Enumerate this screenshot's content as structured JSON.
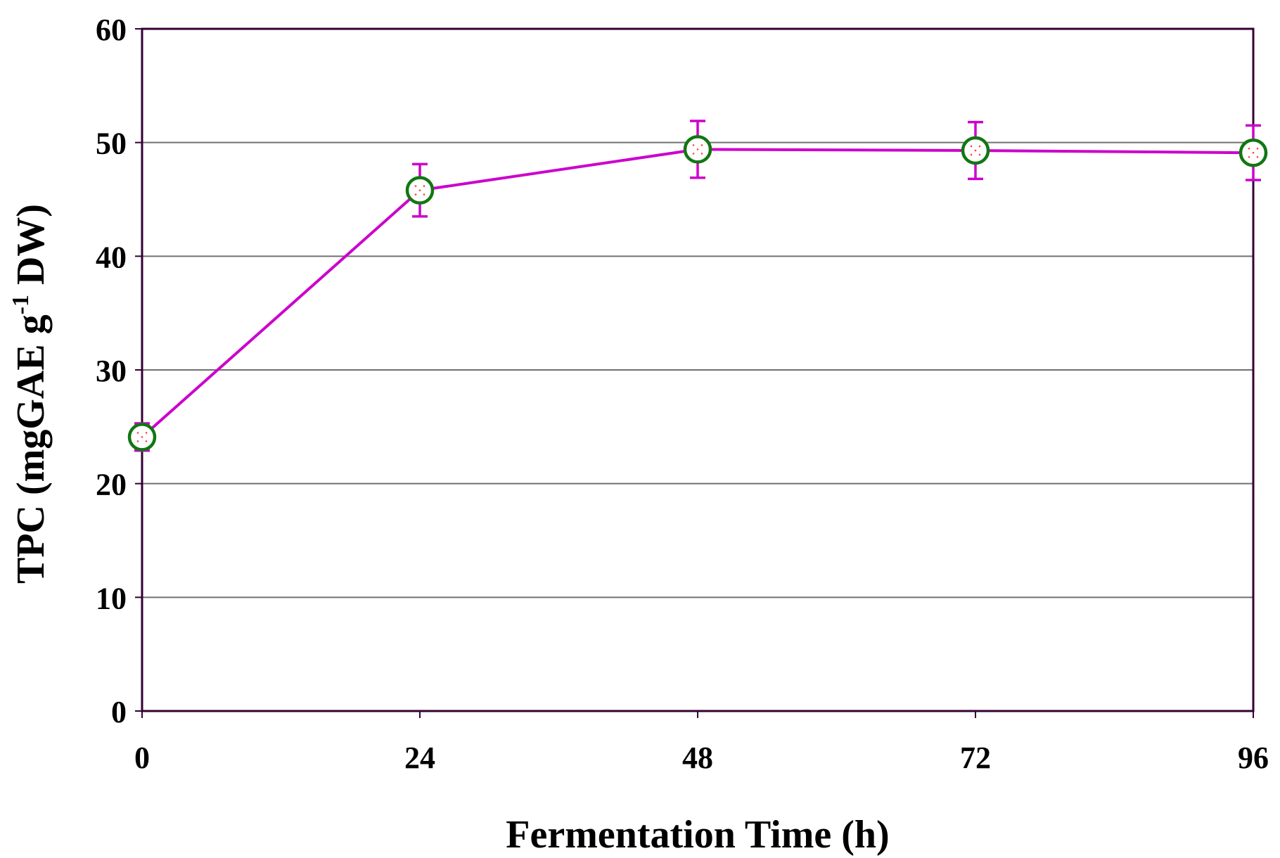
{
  "chart_data": {
    "type": "line",
    "title": "",
    "xlabel": "Fermentation Time (h)",
    "ylabel_main": "TPC (mgGAE g",
    "ylabel_sup": "-1",
    "ylabel_end": " DW)",
    "x": [
      0,
      24,
      48,
      72,
      96
    ],
    "xlim": [
      0,
      96
    ],
    "ylim": [
      0,
      60
    ],
    "xticks": [
      "0",
      "24",
      "48",
      "72",
      "96"
    ],
    "yticks": [
      "0",
      "10",
      "20",
      "30",
      "40",
      "50",
      "60"
    ],
    "grid": true,
    "series": [
      {
        "name": "TPC",
        "values": [
          24.1,
          45.8,
          49.4,
          49.3,
          49.1
        ],
        "errors": [
          1.2,
          2.3,
          2.5,
          2.5,
          2.4
        ],
        "line_color": "#cc00cc",
        "marker_edge_color": "#117711",
        "marker_fill_color": "#ffffff"
      }
    ],
    "frame_color": "#330033",
    "grid_color": "#707070"
  }
}
